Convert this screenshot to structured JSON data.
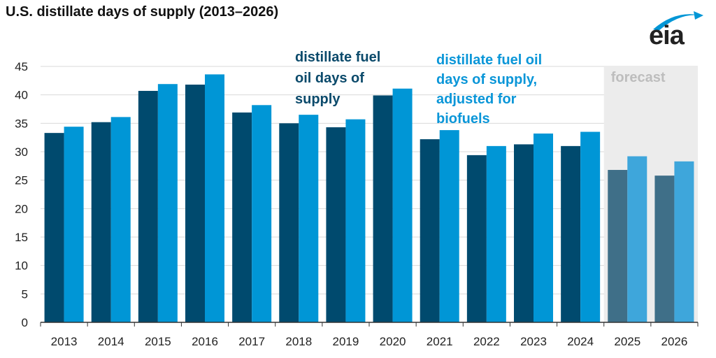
{
  "title": "U.S. distillate days of supply (2013–2026)",
  "logo": {
    "text": "eia",
    "color": "#0096d6"
  },
  "forecast_label": "forecast",
  "colors": {
    "dark": "#004a6e",
    "light": "#0096d6",
    "dark_forecast": "#3f6f88",
    "light_forecast": "#3ea6db",
    "forecast_bg": "#ececec",
    "grid": "#d9d9d9",
    "axis": "#333333"
  },
  "annotations": {
    "dark": [
      "distillate fuel",
      "oil days of",
      "supply"
    ],
    "light": [
      "distillate fuel oil",
      "days of supply,",
      "adjusted for",
      "biofuels"
    ]
  },
  "chart_data": {
    "type": "bar",
    "title": "U.S. distillate days of supply (2013–2026)",
    "categories": [
      "2013",
      "2014",
      "2015",
      "2016",
      "2017",
      "2018",
      "2019",
      "2020",
      "2021",
      "2022",
      "2023",
      "2024",
      "2025",
      "2026"
    ],
    "series": [
      {
        "name": "distillate fuel oil days of supply",
        "values": [
          33.3,
          35.2,
          40.7,
          41.8,
          36.9,
          35.0,
          34.3,
          39.9,
          32.2,
          29.4,
          31.3,
          31.0,
          26.8,
          25.8
        ]
      },
      {
        "name": "distillate fuel oil days of supply, adjusted for biofuels",
        "values": [
          34.4,
          36.1,
          41.9,
          43.6,
          38.2,
          36.5,
          35.7,
          41.1,
          33.8,
          31.0,
          33.2,
          33.5,
          29.2,
          28.3
        ]
      }
    ],
    "forecast_categories": [
      "2025",
      "2026"
    ],
    "ylim": [
      0,
      45
    ],
    "yticks": [
      0,
      5,
      10,
      15,
      20,
      25,
      30,
      35,
      40,
      45
    ],
    "grid": true,
    "xlabel": "",
    "ylabel": ""
  }
}
